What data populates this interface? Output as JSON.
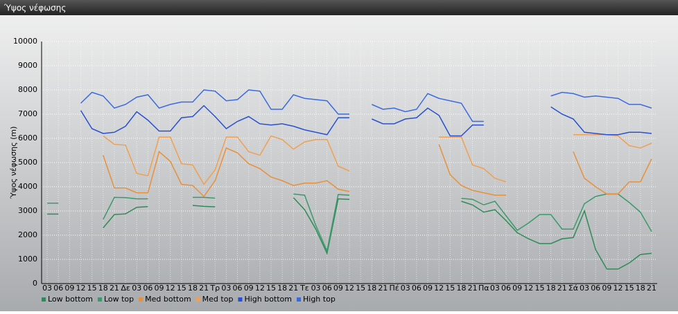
{
  "chart_data": {
    "type": "line",
    "title": "Ύψος νέφωσης",
    "ylabel": "Ύψος νέφωσης (m)",
    "categories": [
      "03",
      "06",
      "09",
      "12",
      "15",
      "18",
      "21",
      "Δε",
      "03",
      "06",
      "09",
      "12",
      "15",
      "18",
      "21",
      "Τρ",
      "03",
      "06",
      "09",
      "12",
      "15",
      "18",
      "21",
      "Τε",
      "03",
      "06",
      "09",
      "12",
      "15",
      "18",
      "21",
      "Πέ",
      "03",
      "06",
      "09",
      "12",
      "15",
      "18",
      "21",
      "Πα",
      "03",
      "06",
      "09",
      "12",
      "15",
      "18",
      "21",
      "Σά",
      "03",
      "06",
      "09",
      "12",
      "15",
      "18",
      "21"
    ],
    "ylim": [
      0,
      10000
    ],
    "yticks": [
      0,
      1000,
      2000,
      3000,
      4000,
      5000,
      6000,
      7000,
      8000,
      9000,
      10000
    ],
    "grid": true,
    "series": [
      {
        "name": "Low bottom",
        "color": "#2e8b57",
        "values": [
          2870,
          2870,
          null,
          null,
          null,
          2300,
          2850,
          2880,
          3150,
          3180,
          null,
          null,
          null,
          3230,
          3190,
          3170,
          null,
          null,
          null,
          null,
          null,
          null,
          3550,
          3050,
          2250,
          1250,
          3500,
          3480,
          null,
          null,
          null,
          null,
          null,
          null,
          null,
          null,
          null,
          3400,
          3250,
          2950,
          3050,
          2600,
          2100,
          1850,
          1650,
          1650,
          1850,
          1900,
          3000,
          1400,
          600,
          600,
          850,
          1200,
          1250
        ]
      },
      {
        "name": "Low top",
        "color": "#3a9a6a",
        "values": [
          3320,
          3320,
          null,
          null,
          null,
          2650,
          3560,
          3550,
          3500,
          3500,
          null,
          null,
          null,
          3560,
          3560,
          3530,
          null,
          null,
          null,
          null,
          null,
          null,
          3700,
          3650,
          2400,
          1350,
          3680,
          3650,
          null,
          null,
          null,
          null,
          null,
          null,
          null,
          null,
          null,
          3520,
          3480,
          3250,
          3400,
          2800,
          2200,
          2500,
          2850,
          2850,
          2250,
          2250,
          3300,
          3600,
          3700,
          3700,
          3350,
          2950,
          2150
        ]
      },
      {
        "name": "Med bottom",
        "color": "#e8903a",
        "values": [
          null,
          null,
          null,
          null,
          null,
          5300,
          3950,
          3950,
          3750,
          3750,
          5450,
          5050,
          4100,
          4050,
          3600,
          4250,
          5600,
          5400,
          4950,
          4750,
          4400,
          4250,
          4050,
          4150,
          4150,
          4250,
          3900,
          3800,
          null,
          null,
          null,
          null,
          null,
          null,
          null,
          5750,
          4500,
          4050,
          3850,
          3750,
          3650,
          3650,
          null,
          null,
          null,
          null,
          null,
          5450,
          4350,
          4000,
          3700,
          3700,
          4200,
          4200,
          5150
        ]
      },
      {
        "name": "Med top",
        "color": "#f0a050",
        "values": [
          null,
          null,
          null,
          null,
          null,
          6100,
          5750,
          5720,
          4550,
          4450,
          6050,
          6050,
          4950,
          4900,
          4100,
          4700,
          6050,
          6050,
          5450,
          5300,
          6100,
          5950,
          5550,
          5850,
          5950,
          5950,
          4850,
          4650,
          null,
          null,
          null,
          null,
          null,
          null,
          null,
          6050,
          6050,
          6050,
          4900,
          4750,
          4350,
          4200,
          null,
          null,
          null,
          null,
          null,
          6150,
          6150,
          6150,
          6150,
          6100,
          5700,
          5600,
          5800
        ]
      },
      {
        "name": "High bottom",
        "color": "#2850d0",
        "values": [
          null,
          null,
          null,
          7150,
          6400,
          6200,
          6250,
          6500,
          7100,
          6750,
          6300,
          6300,
          6850,
          6900,
          7350,
          6900,
          6400,
          6700,
          6900,
          6600,
          6550,
          6600,
          6500,
          6350,
          6250,
          6150,
          6850,
          6850,
          null,
          6800,
          6600,
          6600,
          6800,
          6850,
          7250,
          6950,
          6100,
          6100,
          6550,
          6550,
          null,
          null,
          null,
          null,
          null,
          7300,
          7000,
          6800,
          6250,
          6200,
          6150,
          6150,
          6250,
          6250,
          6200
        ]
      },
      {
        "name": "High top",
        "color": "#3a6ae0",
        "values": [
          null,
          null,
          null,
          7450,
          7900,
          7750,
          7250,
          7400,
          7700,
          7800,
          7250,
          7400,
          7500,
          7500,
          8000,
          7950,
          7550,
          7600,
          8000,
          7950,
          7200,
          7200,
          7800,
          7650,
          7600,
          7550,
          7000,
          7000,
          null,
          7400,
          7200,
          7250,
          7100,
          7200,
          7850,
          7650,
          7550,
          7450,
          6700,
          6700,
          null,
          null,
          null,
          null,
          null,
          7750,
          7900,
          7850,
          7700,
          7750,
          7700,
          7650,
          7400,
          7400,
          7250
        ]
      }
    ]
  }
}
